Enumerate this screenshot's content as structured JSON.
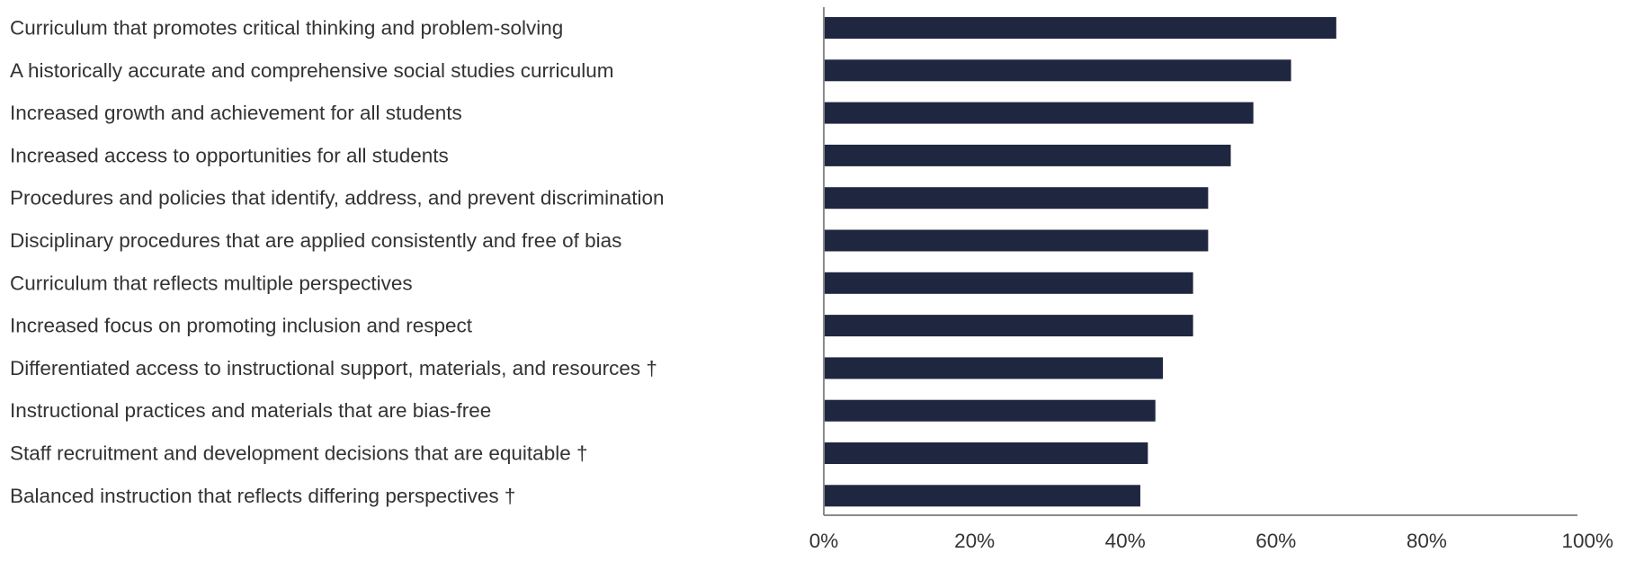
{
  "chart_data": {
    "type": "bar",
    "orientation": "horizontal",
    "categories": [
      "Curriculum that promotes critical thinking and problem-solving",
      "A historically accurate and comprehensive social studies curriculum",
      "Increased growth and achievement for all students",
      "Increased access to opportunities for all students",
      "Procedures and policies that identify, address, and prevent discrimination",
      "Disciplinary procedures that are applied consistently and free of bias",
      "Curriculum that reflects multiple perspectives",
      "Increased focus on promoting inclusion and respect",
      "Differentiated access to instructional support, materials, and resources †",
      "Instructional practices and materials that are bias-free",
      "Staff recruitment and development decisions that are equitable †",
      "Balanced instruction that reflects differing perspectives †"
    ],
    "values": [
      68,
      62,
      57,
      54,
      51,
      51,
      49,
      49,
      45,
      44,
      43,
      42
    ],
    "xlim": [
      0,
      100
    ],
    "x_ticks": [
      0,
      20,
      40,
      60,
      80,
      100
    ],
    "x_tick_labels": [
      "0%",
      "20%",
      "40%",
      "60%",
      "80%",
      "100%"
    ],
    "title": "",
    "xlabel": "",
    "ylabel": "",
    "grid": false,
    "legend": "none",
    "bar_color": "#1f2640",
    "axis_color": "#8a8a8a",
    "label_color": "#333333"
  }
}
